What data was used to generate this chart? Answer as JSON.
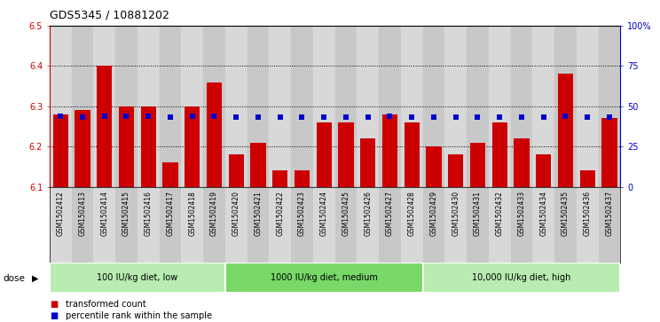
{
  "title": "GDS5345 / 10881202",
  "samples": [
    "GSM1502412",
    "GSM1502413",
    "GSM1502414",
    "GSM1502415",
    "GSM1502416",
    "GSM1502417",
    "GSM1502418",
    "GSM1502419",
    "GSM1502420",
    "GSM1502421",
    "GSM1502422",
    "GSM1502423",
    "GSM1502424",
    "GSM1502425",
    "GSM1502426",
    "GSM1502427",
    "GSM1502428",
    "GSM1502429",
    "GSM1502430",
    "GSM1502431",
    "GSM1502432",
    "GSM1502433",
    "GSM1502434",
    "GSM1502435",
    "GSM1502436",
    "GSM1502437"
  ],
  "bar_values": [
    6.28,
    6.29,
    6.4,
    6.3,
    6.3,
    6.16,
    6.3,
    6.36,
    6.18,
    6.21,
    6.14,
    6.14,
    6.26,
    6.26,
    6.22,
    6.28,
    6.26,
    6.2,
    6.18,
    6.21,
    6.26,
    6.22,
    6.18,
    6.38,
    6.14,
    6.27
  ],
  "percentile_values": [
    44,
    43,
    44,
    44,
    44,
    43,
    44,
    44,
    43,
    43,
    43,
    43,
    43,
    43,
    43,
    44,
    43,
    43,
    43,
    43,
    43,
    43,
    43,
    44,
    43,
    43
  ],
  "ymin": 6.1,
  "ymax": 6.5,
  "yticks": [
    6.1,
    6.2,
    6.3,
    6.4,
    6.5
  ],
  "right_yticks": [
    0,
    25,
    50,
    75,
    100
  ],
  "right_ytick_labels": [
    "0",
    "25",
    "50",
    "75",
    "100%"
  ],
  "groups": [
    {
      "label": "100 IU/kg diet, low",
      "start": 0,
      "end": 8
    },
    {
      "label": "1000 IU/kg diet, medium",
      "start": 8,
      "end": 17
    },
    {
      "label": "10,000 IU/kg diet, high",
      "start": 17,
      "end": 26
    }
  ],
  "bar_color": "#cc0000",
  "percentile_color": "#0000cc",
  "fig_bg_color": "#ffffff",
  "plot_bg_color": "#ffffff",
  "col_bg_even": "#d8d8d8",
  "col_bg_odd": "#c8c8c8",
  "group_color_light": "#a8e8a0",
  "group_color_dark": "#78d868",
  "bar_width": 0.7,
  "dose_label": "dose",
  "legend_items": [
    {
      "label": "transformed count",
      "color": "#cc0000"
    },
    {
      "label": "percentile rank within the sample",
      "color": "#0000cc"
    }
  ]
}
